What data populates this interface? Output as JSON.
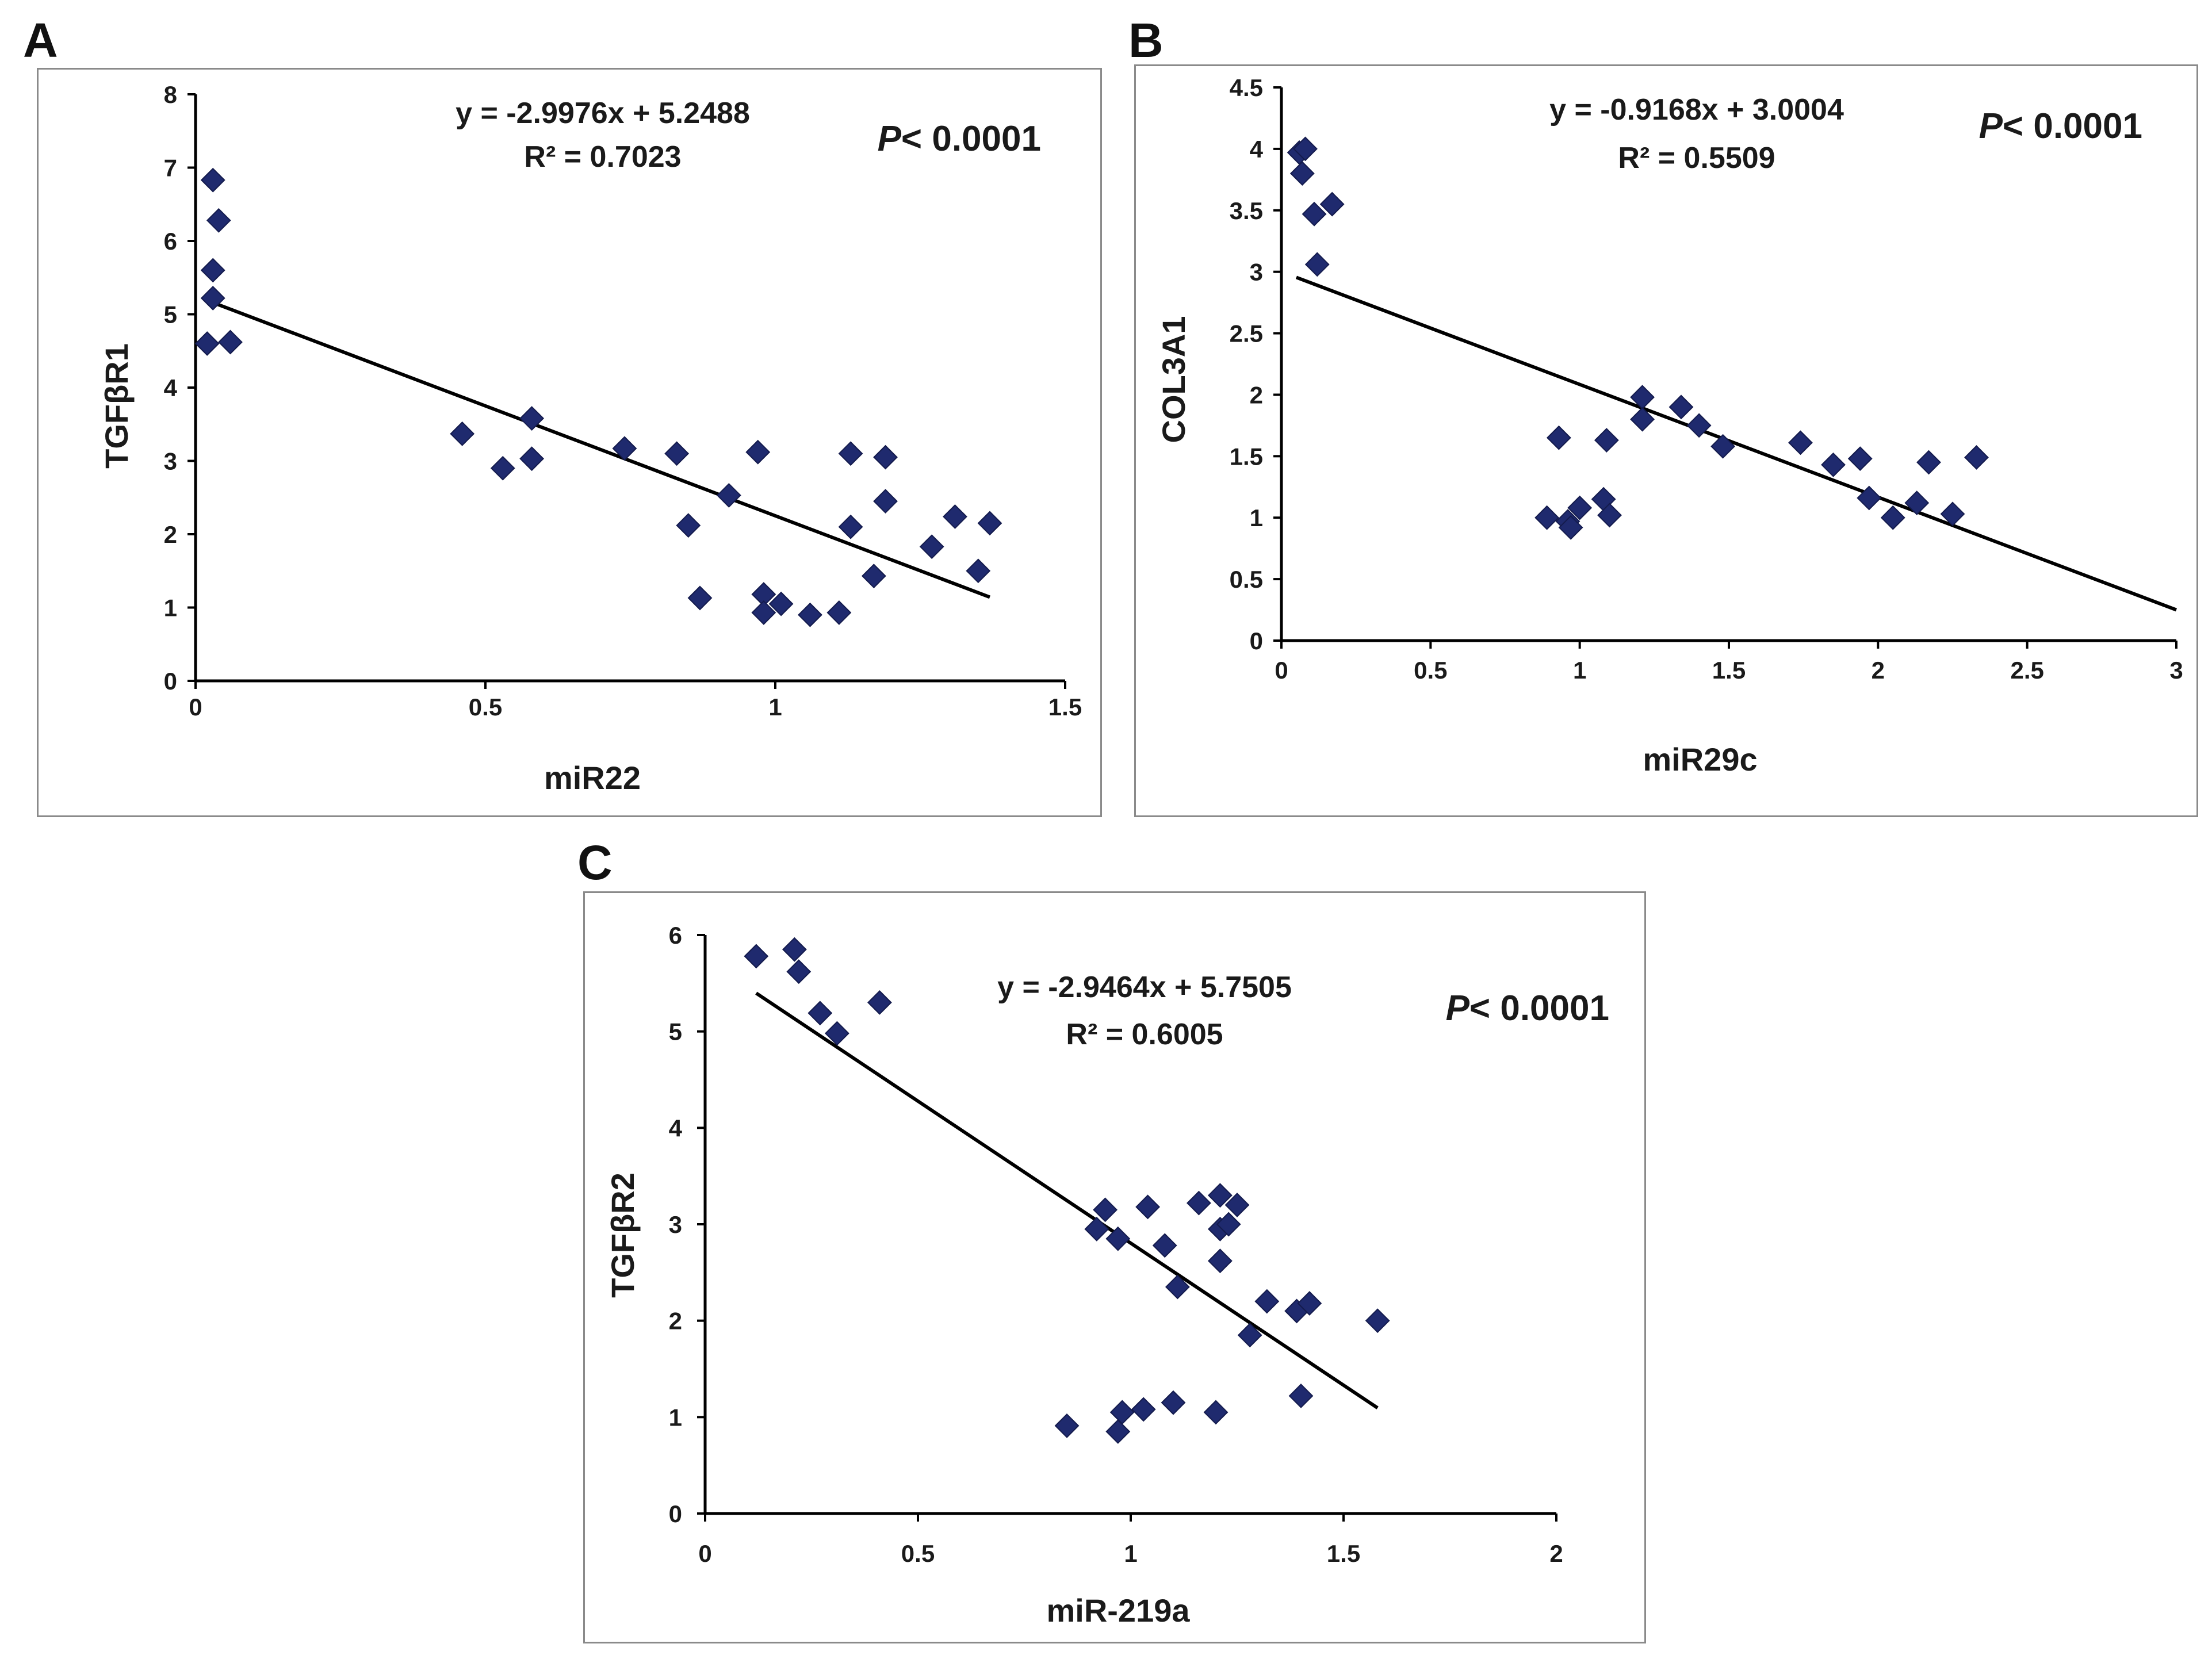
{
  "chart_data": [
    {
      "panel": "A",
      "type": "scatter",
      "xlabel": "miR22",
      "ylabel": "TGFβR1",
      "xlim": [
        0,
        1.5
      ],
      "ylim": [
        0,
        8
      ],
      "xticks": [
        "0",
        "0.5",
        "1",
        "1.5"
      ],
      "yticks": [
        "0",
        "1",
        "2",
        "3",
        "4",
        "5",
        "6",
        "7",
        "8"
      ],
      "equation": "y = -2.9976x + 5.2488",
      "r2": "R² = 0.7023",
      "p_prefix": "P",
      "p_value": "< 0.0001",
      "trendline": {
        "slope": -2.9976,
        "intercept": 5.2488,
        "x_range": [
          0.02,
          1.37
        ]
      },
      "marker_color": "#1f2a6e",
      "line_color": "#000000",
      "points": [
        [
          0.03,
          6.83
        ],
        [
          0.04,
          6.28
        ],
        [
          0.03,
          5.6
        ],
        [
          0.03,
          5.22
        ],
        [
          0.02,
          4.6
        ],
        [
          0.06,
          4.62
        ],
        [
          0.46,
          3.37
        ],
        [
          0.53,
          2.9
        ],
        [
          0.58,
          3.58
        ],
        [
          0.58,
          3.03
        ],
        [
          0.74,
          3.17
        ],
        [
          0.83,
          3.1
        ],
        [
          0.85,
          2.12
        ],
        [
          0.87,
          1.13
        ],
        [
          0.92,
          2.53
        ],
        [
          0.97,
          3.12
        ],
        [
          0.98,
          1.18
        ],
        [
          0.98,
          0.93
        ],
        [
          1.01,
          1.05
        ],
        [
          1.06,
          0.9
        ],
        [
          1.11,
          0.93
        ],
        [
          1.13,
          3.1
        ],
        [
          1.13,
          2.1
        ],
        [
          1.17,
          1.43
        ],
        [
          1.19,
          3.05
        ],
        [
          1.19,
          2.45
        ],
        [
          1.27,
          1.83
        ],
        [
          1.31,
          2.24
        ],
        [
          1.35,
          1.5
        ],
        [
          1.37,
          2.15
        ]
      ]
    },
    {
      "panel": "B",
      "type": "scatter",
      "xlabel": "miR29c",
      "ylabel": "COL3A1",
      "xlim": [
        0,
        3
      ],
      "ylim": [
        0,
        4.5
      ],
      "xticks": [
        "0",
        "0.5",
        "1",
        "1.5",
        "2",
        "2.5",
        "3"
      ],
      "yticks": [
        "0",
        "0.5",
        "1",
        "1.5",
        "2",
        "2.5",
        "3",
        "3.5",
        "4",
        "4.5"
      ],
      "equation": "y = -0.9168x + 3.0004",
      "r2": "R² = 0.5509",
      "p_prefix": "P",
      "p_value": "< 0.0001",
      "trendline": {
        "slope": -0.9168,
        "intercept": 3.0004,
        "x_range": [
          0.05,
          3.0
        ]
      },
      "marker_color": "#1f2a6e",
      "line_color": "#000000",
      "points": [
        [
          0.06,
          3.97
        ],
        [
          0.08,
          4.0
        ],
        [
          0.07,
          3.8
        ],
        [
          0.11,
          3.47
        ],
        [
          0.17,
          3.55
        ],
        [
          0.12,
          3.06
        ],
        [
          0.89,
          1.0
        ],
        [
          0.93,
          1.65
        ],
        [
          0.96,
          0.97
        ],
        [
          0.97,
          0.92
        ],
        [
          1.0,
          1.08
        ],
        [
          1.08,
          1.15
        ],
        [
          1.09,
          1.63
        ],
        [
          1.1,
          1.02
        ],
        [
          1.21,
          1.98
        ],
        [
          1.21,
          1.8
        ],
        [
          1.34,
          1.9
        ],
        [
          1.4,
          1.75
        ],
        [
          1.48,
          1.58
        ],
        [
          1.74,
          1.61
        ],
        [
          1.85,
          1.43
        ],
        [
          1.94,
          1.48
        ],
        [
          1.97,
          1.16
        ],
        [
          2.05,
          1.0
        ],
        [
          2.13,
          1.12
        ],
        [
          2.17,
          1.45
        ],
        [
          2.25,
          1.03
        ],
        [
          2.33,
          1.49
        ]
      ]
    },
    {
      "panel": "C",
      "type": "scatter",
      "xlabel": "miR-219a",
      "ylabel": "TGFβR2",
      "xlim": [
        0,
        2
      ],
      "ylim": [
        0,
        6
      ],
      "xticks": [
        "0",
        "0.5",
        "1",
        "1.5",
        "2"
      ],
      "yticks": [
        "0",
        "1",
        "2",
        "3",
        "4",
        "5",
        "6"
      ],
      "equation": "y = -2.9464x + 5.7505",
      "r2": "R² = 0.6005",
      "p_prefix": "P",
      "p_value": "< 0.0001",
      "trendline": {
        "slope": -2.9464,
        "intercept": 5.7505,
        "x_range": [
          0.12,
          1.58
        ]
      },
      "marker_color": "#1f2a6e",
      "line_color": "#000000",
      "points": [
        [
          0.12,
          5.78
        ],
        [
          0.21,
          5.85
        ],
        [
          0.22,
          5.62
        ],
        [
          0.27,
          5.19
        ],
        [
          0.31,
          4.98
        ],
        [
          0.41,
          5.3
        ],
        [
          0.85,
          0.91
        ],
        [
          0.92,
          2.95
        ],
        [
          0.94,
          3.15
        ],
        [
          0.97,
          2.85
        ],
        [
          0.97,
          0.85
        ],
        [
          0.98,
          1.05
        ],
        [
          1.03,
          1.08
        ],
        [
          1.04,
          3.18
        ],
        [
          1.08,
          2.78
        ],
        [
          1.1,
          1.15
        ],
        [
          1.11,
          2.35
        ],
        [
          1.16,
          3.22
        ],
        [
          1.2,
          1.05
        ],
        [
          1.21,
          3.3
        ],
        [
          1.21,
          2.95
        ],
        [
          1.21,
          2.62
        ],
        [
          1.23,
          3.0
        ],
        [
          1.25,
          3.2
        ],
        [
          1.28,
          1.85
        ],
        [
          1.32,
          2.2
        ],
        [
          1.39,
          2.1
        ],
        [
          1.4,
          1.22
        ],
        [
          1.42,
          2.18
        ],
        [
          1.58,
          2.0
        ]
      ]
    }
  ]
}
